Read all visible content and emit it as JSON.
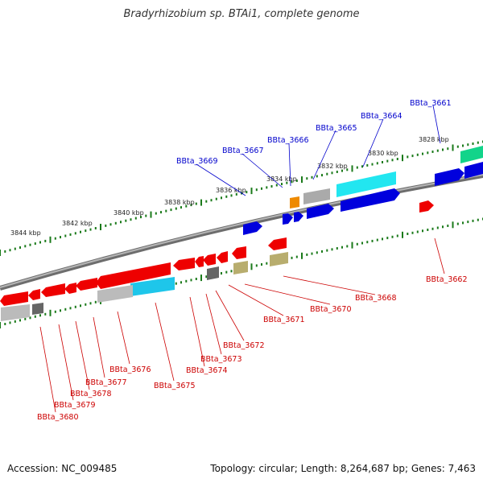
{
  "title": "Bradyrhizobium sp. BTAi1, complete genome",
  "footer": {
    "accession": "Accession: NC_009485",
    "topology": "Topology: circular; Length: 8,264,687 bp; Genes: 7,463"
  },
  "tick_labels": [
    "3844 kbp",
    "3842 kbp",
    "3840 kbp",
    "3838 kbp",
    "3836 kbp",
    "3834 kbp",
    "3832 kbp",
    "3830 kbp",
    "3828 kbp"
  ],
  "forward_gene_labels": [
    "BBta_3661",
    "BBta_3664",
    "BBta_3665",
    "BBta_3666",
    "BBta_3667",
    "BBta_3669"
  ],
  "reverse_gene_labels": [
    "BBta_3662",
    "BBta_3668",
    "BBta_3670",
    "BBta_3671",
    "BBta_3672",
    "BBta_3673",
    "BBta_3674",
    "BBta_3675",
    "BBta_3676",
    "BBta_3677",
    "BBta_3678",
    "BBta_3679",
    "BBta_3680"
  ],
  "colors": {
    "forward_label": "#0000cc",
    "reverse_label": "#cc0000",
    "forward_gene": "#0000dd",
    "reverse_gene": "#ee0000",
    "backbone": "#8a8a8a",
    "tick": "#1a7a1a"
  }
}
